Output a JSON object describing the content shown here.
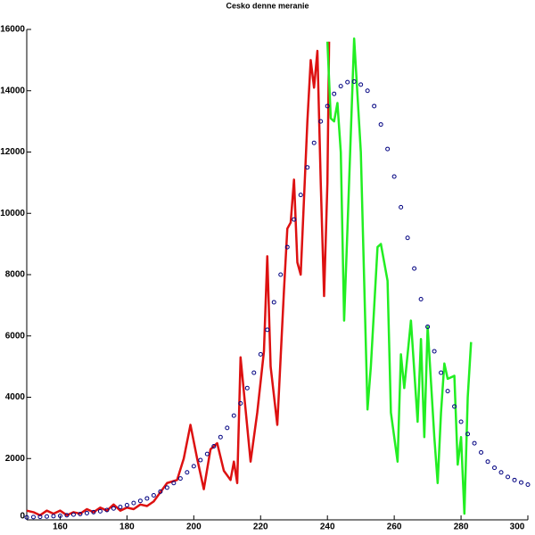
{
  "chart_data": {
    "type": "line",
    "title": "Cesko denne meranie",
    "xlim": [
      150,
      300
    ],
    "ylim": [
      0,
      16000
    ],
    "xticks": [
      160,
      180,
      200,
      220,
      240,
      260,
      280,
      300
    ],
    "yticks": [
      0,
      2000,
      4000,
      6000,
      8000,
      10000,
      12000,
      14000,
      16000
    ],
    "series": [
      {
        "color": "#dd1111",
        "style": "line",
        "x": [
          150,
          152,
          154,
          156,
          158,
          160,
          162,
          164,
          166,
          168,
          170,
          172,
          174,
          176,
          178,
          180,
          182,
          184,
          186,
          188,
          190,
          192,
          195,
          197,
          199,
          201,
          203,
          205,
          207,
          209,
          211,
          212,
          213,
          214,
          217,
          219,
          221,
          222,
          223,
          225,
          227,
          228,
          229,
          230,
          231,
          232,
          234,
          235,
          236,
          237,
          238,
          239,
          240,
          240.5
        ],
        "values": [
          300,
          250,
          150,
          300,
          200,
          300,
          150,
          250,
          200,
          350,
          250,
          400,
          300,
          500,
          300,
          400,
          350,
          500,
          450,
          600,
          900,
          1200,
          1300,
          2000,
          3100,
          2000,
          1000,
          2300,
          2500,
          1600,
          1300,
          1900,
          1200,
          5300,
          1900,
          3500,
          5500,
          8600,
          5000,
          3100,
          7500,
          9500,
          9700,
          11100,
          8400,
          8000,
          13000,
          15000,
          14100,
          15300,
          11000,
          7300,
          11000,
          15600
        ]
      },
      {
        "color": "#22ee22",
        "style": "line",
        "x": [
          240,
          241,
          242,
          243,
          244,
          245,
          246,
          248,
          250,
          252,
          253,
          255,
          256,
          258,
          259,
          261,
          262,
          263,
          265,
          267,
          268,
          269,
          270,
          272,
          273,
          274,
          275,
          276,
          278,
          279,
          280,
          281,
          282,
          283
        ],
        "values": [
          15600,
          13100,
          13000,
          13600,
          12000,
          6500,
          9500,
          15700,
          12000,
          3600,
          5000,
          8900,
          9000,
          7800,
          3500,
          1900,
          5400,
          4300,
          6500,
          3200,
          5900,
          2700,
          6300,
          2700,
          1200,
          3500,
          5100,
          4600,
          4700,
          1800,
          2700,
          200,
          4000,
          5800
        ]
      },
      {
        "color": "#000080",
        "style": "markers",
        "x": [
          150,
          152,
          154,
          156,
          158,
          160,
          162,
          164,
          166,
          168,
          170,
          172,
          174,
          176,
          178,
          180,
          182,
          184,
          186,
          188,
          190,
          192,
          194,
          196,
          198,
          200,
          202,
          204,
          206,
          208,
          210,
          212,
          214,
          216,
          218,
          220,
          222,
          224,
          226,
          228,
          230,
          232,
          234,
          236,
          238,
          240,
          242,
          244,
          246,
          248,
          250,
          252,
          254,
          256,
          258,
          260,
          262,
          264,
          266,
          268,
          270,
          272,
          274,
          276,
          278,
          280,
          282,
          284,
          286,
          288,
          290,
          292,
          294,
          296,
          298,
          300
        ],
        "values": [
          80,
          90,
          100,
          110,
          120,
          130,
          150,
          170,
          190,
          220,
          250,
          280,
          320,
          370,
          420,
          480,
          550,
          620,
          700,
          800,
          920,
          1050,
          1200,
          1350,
          1550,
          1750,
          1950,
          2150,
          2400,
          2700,
          3000,
          3400,
          3800,
          4300,
          4800,
          5400,
          6200,
          7100,
          8000,
          8900,
          9800,
          10600,
          11500,
          12300,
          13000,
          13500,
          13900,
          14150,
          14280,
          14300,
          14200,
          14000,
          13500,
          12900,
          12100,
          11200,
          10200,
          9200,
          8200,
          7200,
          6300,
          5500,
          4800,
          4200,
          3700,
          3200,
          2800,
          2500,
          2200,
          1900,
          1700,
          1550,
          1400,
          1300,
          1220,
          1150
        ]
      }
    ]
  }
}
